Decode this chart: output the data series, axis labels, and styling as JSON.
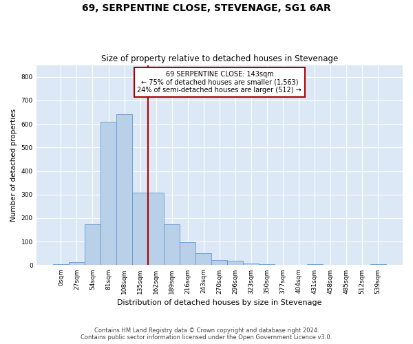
{
  "title": "69, SERPENTINE CLOSE, STEVENAGE, SG1 6AR",
  "subtitle": "Size of property relative to detached houses in Stevenage",
  "xlabel": "Distribution of detached houses by size in Stevenage",
  "ylabel": "Number of detached properties",
  "bar_color": "#b8d0e8",
  "bar_edge_color": "#6699cc",
  "background_color": "#dce8f5",
  "grid_color": "#ffffff",
  "annotation_box_color": "#aa0000",
  "vline_color": "#aa0000",
  "vline_x": 5.5,
  "annotation_lines": [
    "69 SERPENTINE CLOSE: 143sqm",
    "← 75% of detached houses are smaller (1,563)",
    "24% of semi-detached houses are larger (512) →"
  ],
  "categories": [
    "0sqm",
    "27sqm",
    "54sqm",
    "81sqm",
    "108sqm",
    "135sqm",
    "162sqm",
    "189sqm",
    "216sqm",
    "243sqm",
    "270sqm",
    "296sqm",
    "323sqm",
    "350sqm",
    "377sqm",
    "404sqm",
    "431sqm",
    "458sqm",
    "485sqm",
    "512sqm",
    "539sqm"
  ],
  "bar_heights": [
    5,
    13,
    175,
    610,
    640,
    308,
    308,
    175,
    97,
    50,
    22,
    18,
    7,
    3,
    0,
    0,
    4,
    0,
    0,
    0,
    3
  ],
  "ylim": [
    0,
    850
  ],
  "yticks": [
    0,
    100,
    200,
    300,
    400,
    500,
    600,
    700,
    800
  ],
  "footer": "Contains HM Land Registry data © Crown copyright and database right 2024.\nContains public sector information licensed under the Open Government Licence v3.0.",
  "figsize": [
    6.0,
    5.0
  ],
  "dpi": 100
}
